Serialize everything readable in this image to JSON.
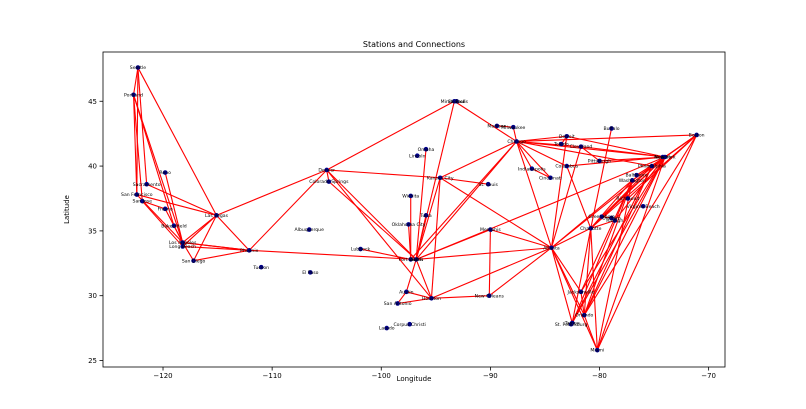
{
  "chart_data": {
    "type": "scatter",
    "title": "Stations and Connections",
    "xlabel": "Longitude",
    "ylabel": "Latitude",
    "xlim": [
      -125.5,
      -68.5
    ],
    "ylim": [
      24.5,
      48.8
    ],
    "xticks": [
      -120,
      -110,
      -100,
      -90,
      -80,
      -70
    ],
    "yticks": [
      25,
      30,
      35,
      40,
      45
    ],
    "grid": false,
    "colors": {
      "edge": "#ff0000",
      "node": "#00008b",
      "axis": "#000000"
    },
    "stations": [
      {
        "name": "Seattle",
        "lon": -122.3,
        "lat": 47.6
      },
      {
        "name": "Portland",
        "lon": -122.7,
        "lat": 45.5
      },
      {
        "name": "Sacramento",
        "lon": -121.5,
        "lat": 38.6
      },
      {
        "name": "San Francisco",
        "lon": -122.4,
        "lat": 37.8
      },
      {
        "name": "San Jose",
        "lon": -121.9,
        "lat": 37.3
      },
      {
        "name": "Reno",
        "lon": -119.8,
        "lat": 39.5
      },
      {
        "name": "Fresno",
        "lon": -119.8,
        "lat": 36.7
      },
      {
        "name": "Bakersfield",
        "lon": -119.0,
        "lat": 35.4
      },
      {
        "name": "Las Vegas",
        "lon": -115.1,
        "lat": 36.2
      },
      {
        "name": "Los Angeles",
        "lon": -118.2,
        "lat": 34.1
      },
      {
        "name": "Long Beach",
        "lon": -118.2,
        "lat": 33.8
      },
      {
        "name": "San Diego",
        "lon": -117.2,
        "lat": 32.7
      },
      {
        "name": "Phoenix",
        "lon": -112.1,
        "lat": 33.5
      },
      {
        "name": "Tucson",
        "lon": -111.0,
        "lat": 32.2
      },
      {
        "name": "Albuquerque",
        "lon": -106.6,
        "lat": 35.1
      },
      {
        "name": "El Paso",
        "lon": -106.5,
        "lat": 31.8
      },
      {
        "name": "Denver",
        "lon": -105.0,
        "lat": 39.7
      },
      {
        "name": "Colorado Springs",
        "lon": -104.8,
        "lat": 38.8
      },
      {
        "name": "Lubbock",
        "lon": -101.9,
        "lat": 33.6
      },
      {
        "name": "Oklahoma City",
        "lon": -97.5,
        "lat": 35.5
      },
      {
        "name": "Wichita",
        "lon": -97.3,
        "lat": 37.7
      },
      {
        "name": "Tulsa",
        "lon": -95.9,
        "lat": 36.2
      },
      {
        "name": "Dallas",
        "lon": -96.8,
        "lat": 32.8
      },
      {
        "name": "Fort Worth",
        "lon": -97.3,
        "lat": 32.8
      },
      {
        "name": "Austin",
        "lon": -97.7,
        "lat": 30.3
      },
      {
        "name": "San Antonio",
        "lon": -98.5,
        "lat": 29.4
      },
      {
        "name": "Houston",
        "lon": -95.4,
        "lat": 29.8
      },
      {
        "name": "Laredo",
        "lon": -99.5,
        "lat": 27.5
      },
      {
        "name": "Corpus Christi",
        "lon": -97.4,
        "lat": 27.8
      },
      {
        "name": "Omaha",
        "lon": -95.9,
        "lat": 41.3
      },
      {
        "name": "Lincoln",
        "lon": -96.7,
        "lat": 40.8
      },
      {
        "name": "Kansas City",
        "lon": -94.6,
        "lat": 39.1
      },
      {
        "name": "St. Louis",
        "lon": -90.2,
        "lat": 38.6
      },
      {
        "name": "Minneapolis",
        "lon": -93.3,
        "lat": 45.0
      },
      {
        "name": "St. Paul",
        "lon": -93.1,
        "lat": 45.0
      },
      {
        "name": "Madison",
        "lon": -89.4,
        "lat": 43.1
      },
      {
        "name": "Milwaukee",
        "lon": -87.9,
        "lat": 43.0
      },
      {
        "name": "Chicago",
        "lon": -87.6,
        "lat": 41.9
      },
      {
        "name": "Memphis",
        "lon": -90.0,
        "lat": 35.1
      },
      {
        "name": "New Orleans",
        "lon": -90.1,
        "lat": 30.0
      },
      {
        "name": "Atlanta",
        "lon": -84.4,
        "lat": 33.7
      },
      {
        "name": "Indianapolis",
        "lon": -86.2,
        "lat": 39.8
      },
      {
        "name": "Detroit",
        "lon": -83.0,
        "lat": 42.3
      },
      {
        "name": "Toledo",
        "lon": -83.5,
        "lat": 41.7
      },
      {
        "name": "Cleveland",
        "lon": -81.7,
        "lat": 41.5
      },
      {
        "name": "Columbus",
        "lon": -83.0,
        "lat": 40.0
      },
      {
        "name": "Cincinnati",
        "lon": -84.5,
        "lat": 39.1
      },
      {
        "name": "Pittsburgh",
        "lon": -80.0,
        "lat": 40.4
      },
      {
        "name": "Buffalo",
        "lon": -78.9,
        "lat": 42.9
      },
      {
        "name": "New York",
        "lon": -74.0,
        "lat": 40.7
      },
      {
        "name": "Newark",
        "lon": -74.2,
        "lat": 40.7
      },
      {
        "name": "Philadelphia",
        "lon": -75.2,
        "lat": 40.0
      },
      {
        "name": "Baltimore",
        "lon": -76.6,
        "lat": 39.3
      },
      {
        "name": "Washington",
        "lon": -77.0,
        "lat": 38.9
      },
      {
        "name": "Richmond",
        "lon": -77.4,
        "lat": 37.5
      },
      {
        "name": "Virginia Beach",
        "lon": -76.0,
        "lat": 36.9
      },
      {
        "name": "Raleigh",
        "lon": -78.6,
        "lat": 35.8
      },
      {
        "name": "Durham",
        "lon": -78.9,
        "lat": 36.0
      },
      {
        "name": "Greensboro",
        "lon": -79.8,
        "lat": 36.1
      },
      {
        "name": "Charlotte",
        "lon": -80.8,
        "lat": 35.2
      },
      {
        "name": "Boston",
        "lon": -71.1,
        "lat": 42.4
      },
      {
        "name": "Jacksonville",
        "lon": -81.7,
        "lat": 30.3
      },
      {
        "name": "Orlando",
        "lon": -81.4,
        "lat": 28.5
      },
      {
        "name": "Tampa",
        "lon": -82.5,
        "lat": 27.9
      },
      {
        "name": "St. Petersburg",
        "lon": -82.6,
        "lat": 27.8
      },
      {
        "name": "Miami",
        "lon": -80.2,
        "lat": 25.8
      }
    ],
    "edges": [
      [
        "Seattle",
        "Portland"
      ],
      [
        "Seattle",
        "San Francisco"
      ],
      [
        "Seattle",
        "Las Vegas"
      ],
      [
        "Seattle",
        "Sacramento"
      ],
      [
        "Portland",
        "San Jose"
      ],
      [
        "Portland",
        "Bakersfield"
      ],
      [
        "Portland",
        "Los Angeles"
      ],
      [
        "Portland",
        "San Francisco"
      ],
      [
        "Sacramento",
        "Las Vegas"
      ],
      [
        "San Francisco",
        "Las Vegas"
      ],
      [
        "San Francisco",
        "Los Angeles"
      ],
      [
        "San Jose",
        "Fresno"
      ],
      [
        "San Jose",
        "Long Beach"
      ],
      [
        "Reno",
        "Los Angeles"
      ],
      [
        "Fresno",
        "Los Angeles"
      ],
      [
        "Bakersfield",
        "Los Angeles"
      ],
      [
        "Los Angeles",
        "Phoenix"
      ],
      [
        "Los Angeles",
        "San Diego"
      ],
      [
        "Long Beach",
        "Phoenix"
      ],
      [
        "Las Vegas",
        "Phoenix"
      ],
      [
        "Las Vegas",
        "Denver"
      ],
      [
        "Las Vegas",
        "Los Angeles"
      ],
      [
        "Las Vegas",
        "Long Beach"
      ],
      [
        "San Diego",
        "Phoenix"
      ],
      [
        "San Diego",
        "Las Vegas"
      ],
      [
        "Phoenix",
        "Denver"
      ],
      [
        "Phoenix",
        "Dallas"
      ],
      [
        "Phoenix",
        "Los Angeles"
      ],
      [
        "Denver",
        "Minneapolis"
      ],
      [
        "Denver",
        "Dallas"
      ],
      [
        "Denver",
        "Houston"
      ],
      [
        "Denver",
        "Kansas City"
      ],
      [
        "Colorado Springs",
        "Dallas"
      ],
      [
        "Colorado Springs",
        "Denver"
      ],
      [
        "Dallas",
        "Chicago"
      ],
      [
        "Dallas",
        "Atlanta"
      ],
      [
        "Dallas",
        "Houston"
      ],
      [
        "Dallas",
        "New York"
      ],
      [
        "Dallas",
        "Kansas City"
      ],
      [
        "Dallas",
        "Memphis"
      ],
      [
        "Dallas",
        "Austin"
      ],
      [
        "Dallas",
        "Minneapolis"
      ],
      [
        "Dallas",
        "Omaha"
      ],
      [
        "Dallas",
        "Tulsa"
      ],
      [
        "Fort Worth",
        "Oklahoma City"
      ],
      [
        "Fort Worth",
        "Chicago"
      ],
      [
        "Fort Worth",
        "Wichita"
      ],
      [
        "Fort Worth",
        "Lubbock"
      ],
      [
        "Houston",
        "New Orleans"
      ],
      [
        "Houston",
        "Atlanta"
      ],
      [
        "Houston",
        "Kansas City"
      ],
      [
        "Houston",
        "Austin"
      ],
      [
        "Houston",
        "San Antonio"
      ],
      [
        "Austin",
        "San Antonio"
      ],
      [
        "Kansas City",
        "Chicago"
      ],
      [
        "Kansas City",
        "St. Louis"
      ],
      [
        "Kansas City",
        "Atlanta"
      ],
      [
        "Minneapolis",
        "Chicago"
      ],
      [
        "Chicago",
        "Detroit"
      ],
      [
        "Chicago",
        "New York"
      ],
      [
        "Chicago",
        "Atlanta"
      ],
      [
        "Chicago",
        "Cleveland"
      ],
      [
        "Chicago",
        "Milwaukee"
      ],
      [
        "Chicago",
        "Boston"
      ],
      [
        "Chicago",
        "Philadelphia"
      ],
      [
        "Chicago",
        "Cincinnati"
      ],
      [
        "Milwaukee",
        "Madison"
      ],
      [
        "Atlanta",
        "New York"
      ],
      [
        "Atlanta",
        "Miami"
      ],
      [
        "Atlanta",
        "Charlotte"
      ],
      [
        "Atlanta",
        "Orlando"
      ],
      [
        "Atlanta",
        "Washington"
      ],
      [
        "Atlanta",
        "New Orleans"
      ],
      [
        "Atlanta",
        "Memphis"
      ],
      [
        "Atlanta",
        "Tampa"
      ],
      [
        "Atlanta",
        "Jacksonville"
      ],
      [
        "New York",
        "Boston"
      ],
      [
        "New York",
        "Philadelphia"
      ],
      [
        "New York",
        "Washington"
      ],
      [
        "New York",
        "Miami"
      ],
      [
        "New York",
        "Orlando"
      ],
      [
        "New York",
        "Charlotte"
      ],
      [
        "New York",
        "Jacksonville"
      ],
      [
        "New York",
        "Raleigh"
      ],
      [
        "New York",
        "Tampa"
      ],
      [
        "New York",
        "Cleveland"
      ],
      [
        "New York",
        "Detroit"
      ],
      [
        "New York",
        "Pittsburgh"
      ],
      [
        "New York",
        "Columbus"
      ],
      [
        "New York",
        "Baltimore"
      ],
      [
        "Boston",
        "Philadelphia"
      ],
      [
        "Boston",
        "Washington"
      ],
      [
        "Boston",
        "Charlotte"
      ],
      [
        "Boston",
        "Richmond"
      ],
      [
        "Boston",
        "Miami"
      ],
      [
        "Boston",
        "Orlando"
      ],
      [
        "Washington",
        "Charlotte"
      ],
      [
        "Washington",
        "Miami"
      ],
      [
        "Washington",
        "Orlando"
      ],
      [
        "Washington",
        "Jacksonville"
      ],
      [
        "Washington",
        "Tampa"
      ],
      [
        "Philadelphia",
        "Charlotte"
      ],
      [
        "Philadelphia",
        "Orlando"
      ],
      [
        "Philadelphia",
        "Tampa"
      ],
      [
        "Charlotte",
        "Orlando"
      ],
      [
        "Charlotte",
        "Miami"
      ],
      [
        "Charlotte",
        "Tampa"
      ],
      [
        "Charlotte",
        "Raleigh"
      ],
      [
        "Charlotte",
        "Greensboro"
      ],
      [
        "Columbus",
        "Chicago"
      ],
      [
        "Columbus",
        "Charlotte"
      ],
      [
        "Buffalo",
        "Charlotte"
      ],
      [
        "Detroit",
        "Atlanta"
      ],
      [
        "Detroit",
        "Toledo"
      ],
      [
        "Cleveland",
        "Atlanta"
      ],
      [
        "Cleveland",
        "Pittsburgh"
      ],
      [
        "Indianapolis",
        "Cincinnati"
      ],
      [
        "Indianapolis",
        "Chicago"
      ],
      [
        "Greensboro",
        "Durham"
      ],
      [
        "Jacksonville",
        "Orlando"
      ],
      [
        "Orlando",
        "Miami"
      ],
      [
        "Tampa",
        "St. Petersburg"
      ],
      [
        "New Orleans",
        "Memphis"
      ],
      [
        "New York",
        "Greensboro"
      ]
    ]
  }
}
